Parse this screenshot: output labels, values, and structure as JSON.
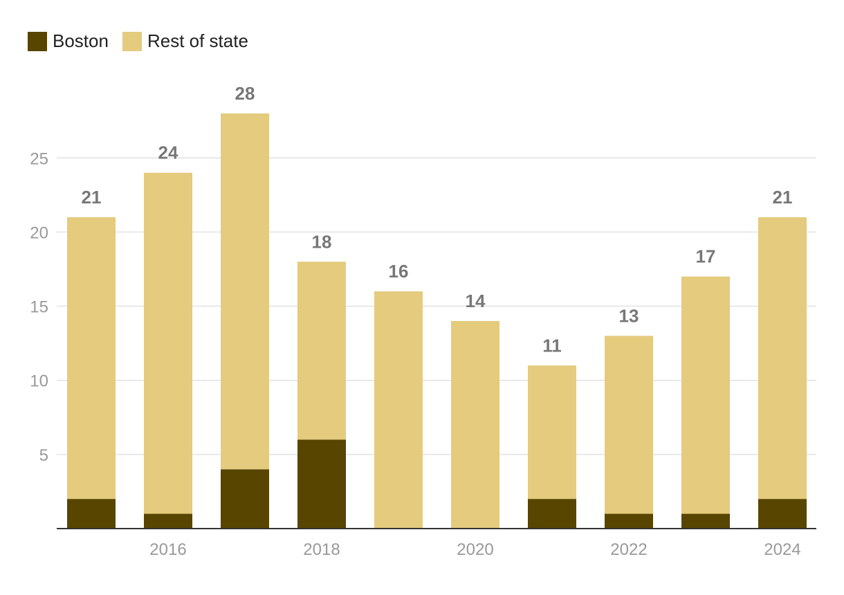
{
  "chart_data": {
    "type": "bar",
    "stacked": true,
    "categories": [
      "2015",
      "2016",
      "2017",
      "2018",
      "2019",
      "2020",
      "2021",
      "2022",
      "2023",
      "2024"
    ],
    "x_tick_labels": [
      "2016",
      "2018",
      "2020",
      "2022",
      "2024"
    ],
    "series": [
      {
        "name": "Boston",
        "values": [
          2,
          1,
          4,
          6,
          0,
          0,
          2,
          1,
          1,
          2
        ],
        "color": "#574500"
      },
      {
        "name": "Rest of state",
        "values": [
          19,
          23,
          24,
          12,
          16,
          14,
          9,
          12,
          16,
          19
        ],
        "color": "#e4cb7d"
      }
    ],
    "totals": [
      21,
      24,
      28,
      18,
      16,
      14,
      11,
      13,
      17,
      21
    ],
    "y_ticks": [
      5,
      10,
      15,
      20,
      25
    ],
    "ylim": [
      0,
      30
    ],
    "grid": true,
    "legend_position": "top-left",
    "title": "",
    "xlabel": "",
    "ylabel": ""
  }
}
